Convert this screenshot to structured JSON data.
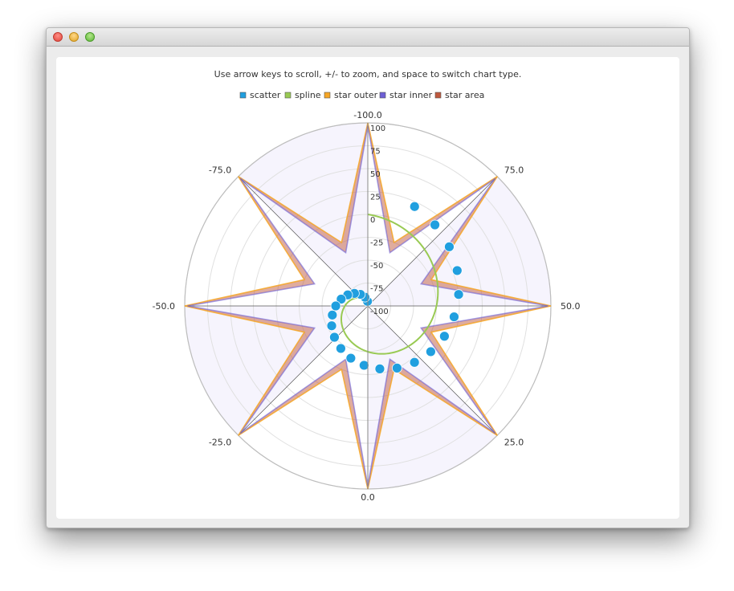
{
  "window": {
    "title": "",
    "traffic_lights": [
      "close-button",
      "minimize-button",
      "maximize-button"
    ]
  },
  "chart_data": {
    "type": "polar",
    "title": "Use arrow keys to scroll, +/- to zoom, and space to switch chart type.",
    "legend": {
      "placement": "top",
      "entries": [
        {
          "name": "scatter",
          "color": "#209fdf"
        },
        {
          "name": "spline",
          "color": "#99ca53"
        },
        {
          "name": "star outer",
          "color": "#f6a625"
        },
        {
          "name": "star inner",
          "color": "#6d5fd5"
        },
        {
          "name": "star area",
          "color": "#bf593e"
        }
      ]
    },
    "angular_axis": {
      "range": [
        -100,
        100
      ],
      "reversed": true,
      "tick_labels": [
        "-100.0",
        "-75.0",
        "-50.0",
        "-25.0",
        "0.0",
        "25.0",
        "50.0",
        "75.0"
      ],
      "shaded_bands": true
    },
    "radial_axis": {
      "range": [
        -100,
        100
      ],
      "tick_labels": [
        "-100",
        "-75",
        "-50",
        "-25",
        "0",
        "25",
        "50",
        "75",
        "100"
      ],
      "grid": true
    },
    "series": [
      {
        "name": "scatter",
        "type": "scatter",
        "color": "#209fdf",
        "points": [
          {
            "angle": -98,
            "radius": -95
          },
          {
            "angle": -90,
            "radius": -90
          },
          {
            "angle": -82,
            "radius": -85
          },
          {
            "angle": -74,
            "radius": -80
          },
          {
            "angle": -66,
            "radius": -75
          },
          {
            "angle": -58,
            "radius": -70
          },
          {
            "angle": -50,
            "radius": -65
          },
          {
            "angle": -42,
            "radius": -60
          },
          {
            "angle": -34,
            "radius": -55
          },
          {
            "angle": -26,
            "radius": -50
          },
          {
            "angle": -18,
            "radius": -45
          },
          {
            "angle": -10,
            "radius": -40
          },
          {
            "angle": -2,
            "radius": -35
          },
          {
            "angle": 6,
            "radius": -30
          },
          {
            "angle": 14,
            "radius": -25
          },
          {
            "angle": 22,
            "radius": -20
          },
          {
            "angle": 30,
            "radius": -15
          },
          {
            "angle": 38,
            "radius": -10
          },
          {
            "angle": 46,
            "radius": -5
          },
          {
            "angle": 54,
            "radius": 0
          },
          {
            "angle": 62,
            "radius": 5
          },
          {
            "angle": 70,
            "radius": 10
          },
          {
            "angle": 78,
            "radius": 15
          },
          {
            "angle": 86,
            "radius": 20
          }
        ]
      },
      {
        "name": "spline",
        "type": "spline",
        "color": "#99ca53",
        "points": [
          {
            "angle": -100,
            "radius": -100
          },
          {
            "angle": -90,
            "radius": -95
          },
          {
            "angle": -75,
            "radius": -87.5
          },
          {
            "angle": -60,
            "radius": -80
          },
          {
            "angle": -45,
            "radius": -72.5
          },
          {
            "angle": -30,
            "radius": -65
          },
          {
            "angle": -15,
            "radius": -57.5
          },
          {
            "angle": 0,
            "radius": -50
          },
          {
            "angle": 15,
            "radius": -42.5
          },
          {
            "angle": 30,
            "radius": -35
          },
          {
            "angle": 45,
            "radius": -27.5
          },
          {
            "angle": 60,
            "radius": -20
          },
          {
            "angle": 75,
            "radius": -12.5
          },
          {
            "angle": 90,
            "radius": -5
          },
          {
            "angle": 100,
            "radius": 0
          }
        ]
      },
      {
        "name": "star outer",
        "type": "line",
        "color": "#f6a625",
        "points": [
          {
            "angle": -100,
            "radius": 100
          },
          {
            "angle": -87.5,
            "radius": -25
          },
          {
            "angle": -75,
            "radius": 100
          },
          {
            "angle": -62.5,
            "radius": -25
          },
          {
            "angle": -50,
            "radius": 100
          },
          {
            "angle": -37.5,
            "radius": -25
          },
          {
            "angle": -25,
            "radius": 100
          },
          {
            "angle": -12.5,
            "radius": -25
          },
          {
            "angle": 0,
            "radius": 100
          },
          {
            "angle": 12.5,
            "radius": -25
          },
          {
            "angle": 25,
            "radius": 100
          },
          {
            "angle": 37.5,
            "radius": -25
          },
          {
            "angle": 50,
            "radius": 100
          },
          {
            "angle": 62.5,
            "radius": -25
          },
          {
            "angle": 75,
            "radius": 100
          },
          {
            "angle": 87.5,
            "radius": -25
          },
          {
            "angle": 100,
            "radius": 100
          }
        ]
      },
      {
        "name": "star inner",
        "type": "line",
        "color": "#6d5fd5",
        "points": [
          {
            "angle": -100,
            "radius": 97
          },
          {
            "angle": -87.5,
            "radius": -37
          },
          {
            "angle": -75,
            "radius": 97
          },
          {
            "angle": -62.5,
            "radius": -37
          },
          {
            "angle": -50,
            "radius": 97
          },
          {
            "angle": -37.5,
            "radius": -37
          },
          {
            "angle": -25,
            "radius": 97
          },
          {
            "angle": -12.5,
            "radius": -37
          },
          {
            "angle": 0,
            "radius": 97
          },
          {
            "angle": 12.5,
            "radius": -37
          },
          {
            "angle": 25,
            "radius": 97
          },
          {
            "angle": 37.5,
            "radius": -37
          },
          {
            "angle": 50,
            "radius": 97
          },
          {
            "angle": 62.5,
            "radius": -37
          },
          {
            "angle": 75,
            "radius": 97
          },
          {
            "angle": 87.5,
            "radius": -37
          },
          {
            "angle": 100,
            "radius": 97
          }
        ]
      },
      {
        "name": "star area",
        "type": "area",
        "color": "#bf593e",
        "upper": "star outer",
        "lower": "star inner"
      }
    ]
  }
}
